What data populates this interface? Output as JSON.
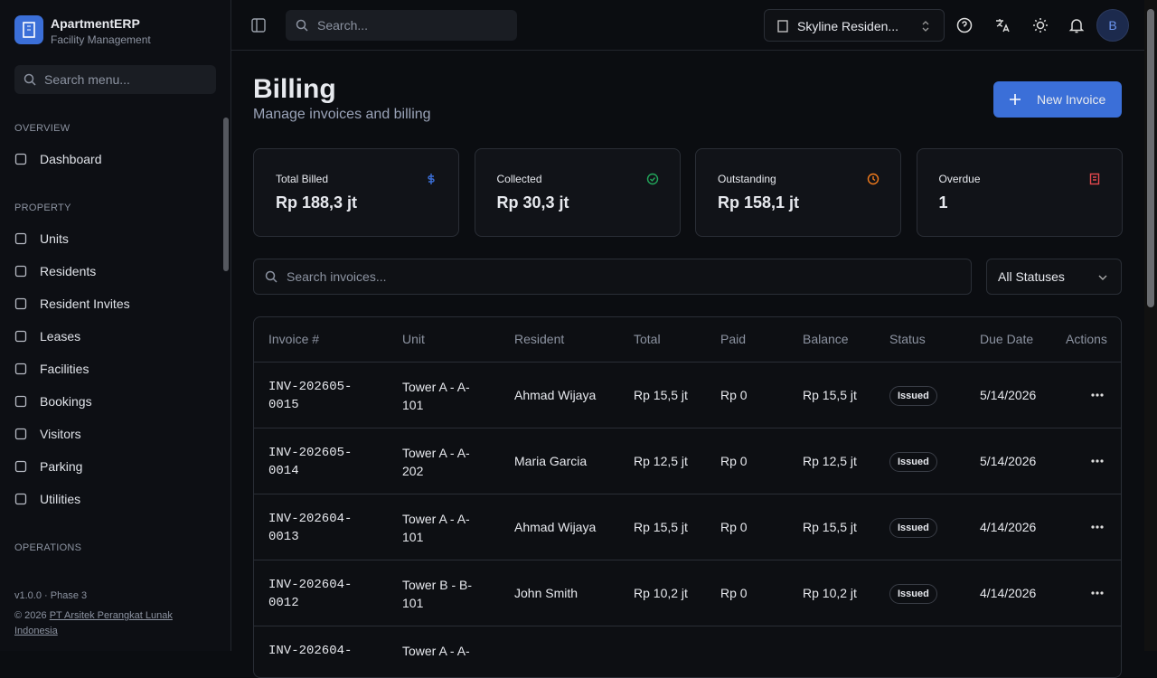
{
  "app": {
    "name": "ApartmentERP",
    "subtitle": "Facility Management"
  },
  "sidebar": {
    "search_placeholder": "Search menu...",
    "sections": [
      {
        "title": "OVERVIEW",
        "items": [
          "Dashboard"
        ]
      },
      {
        "title": "PROPERTY",
        "items": [
          "Units",
          "Residents",
          "Resident Invites",
          "Leases",
          "Facilities",
          "Bookings",
          "Visitors",
          "Parking",
          "Utilities"
        ]
      },
      {
        "title": "OPERATIONS",
        "items": []
      }
    ],
    "footer": {
      "version": "v1.0.0 · Phase 3",
      "copyright": "© 2026",
      "company": "PT Arsitek Perangkat Lunak Indonesia"
    }
  },
  "topbar": {
    "search_placeholder": "Search...",
    "property": "Skyline Residen...",
    "avatar": "B"
  },
  "page": {
    "title": "Billing",
    "subtitle": "Manage invoices and billing",
    "button": "New Invoice"
  },
  "stats": [
    {
      "label": "Total Billed",
      "value": "Rp 188,3 jt"
    },
    {
      "label": "Collected",
      "value": "Rp 30,3 jt"
    },
    {
      "label": "Outstanding",
      "value": "Rp 158,1 jt"
    },
    {
      "label": "Overdue",
      "value": "1"
    }
  ],
  "filters": {
    "search_placeholder": "Search invoices...",
    "status": "All Statuses"
  },
  "table": {
    "headers": [
      "Invoice #",
      "Unit",
      "Resident",
      "Total",
      "Paid",
      "Balance",
      "Status",
      "Due Date",
      "Actions"
    ],
    "rows": [
      {
        "invoice": "INV-202605-0015",
        "unit": "Tower A - A-101",
        "resident": "Ahmad Wijaya",
        "total": "Rp 15,5 jt",
        "paid": "Rp 0",
        "balance": "Rp 15,5 jt",
        "status": "Issued",
        "due": "5/14/2026"
      },
      {
        "invoice": "INV-202605-0014",
        "unit": "Tower A - A-202",
        "resident": "Maria Garcia",
        "total": "Rp 12,5 jt",
        "paid": "Rp 0",
        "balance": "Rp 12,5 jt",
        "status": "Issued",
        "due": "5/14/2026"
      },
      {
        "invoice": "INV-202604-0013",
        "unit": "Tower A - A-101",
        "resident": "Ahmad Wijaya",
        "total": "Rp 15,5 jt",
        "paid": "Rp 0",
        "balance": "Rp 15,5 jt",
        "status": "Issued",
        "due": "4/14/2026"
      },
      {
        "invoice": "INV-202604-0012",
        "unit": "Tower B - B-101",
        "resident": "John Smith",
        "total": "Rp 10,2 jt",
        "paid": "Rp 0",
        "balance": "Rp 10,2 jt",
        "status": "Issued",
        "due": "4/14/2026"
      },
      {
        "invoice": "INV-202604-",
        "unit": "Tower A - A-"
      }
    ]
  }
}
